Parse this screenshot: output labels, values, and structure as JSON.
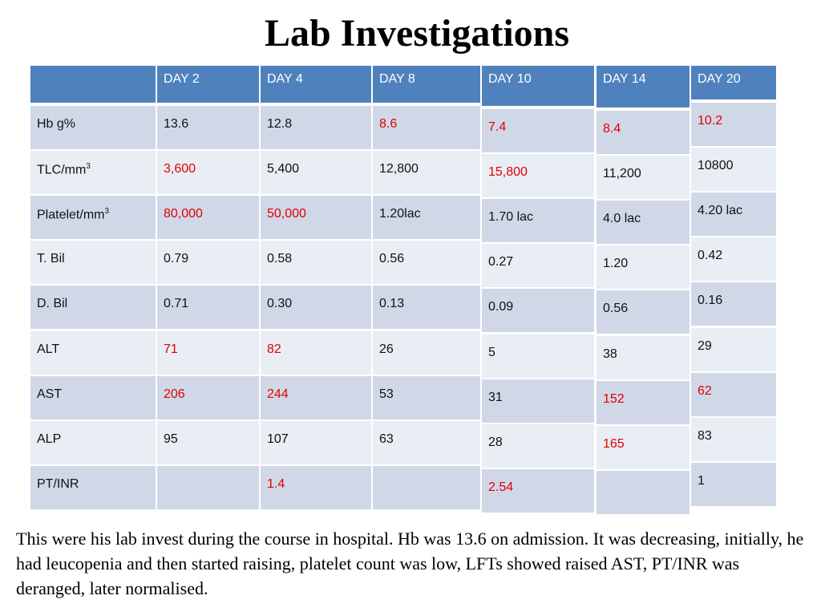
{
  "title": "Lab Investigations",
  "table": {
    "headers": [
      "",
      "DAY 2",
      "DAY 4",
      "DAY 8",
      "DAY 10",
      "DAY 14",
      "DAY 20"
    ],
    "row_labels": [
      {
        "text": "Hb g%",
        "sup": ""
      },
      {
        "text": "TLC/mm",
        "sup": "3"
      },
      {
        "text": "Platelet/mm",
        "sup": "3"
      },
      {
        "text": "T. Bil",
        "sup": ""
      },
      {
        "text": "D. Bil",
        "sup": ""
      },
      {
        "text": "ALT",
        "sup": ""
      },
      {
        "text": "AST",
        "sup": ""
      },
      {
        "text": "ALP",
        "sup": ""
      },
      {
        "text": "PT/INR",
        "sup": ""
      }
    ],
    "values": [
      [
        "13.6",
        "12.8",
        "8.6",
        "7.4",
        "8.4",
        "10.2"
      ],
      [
        "3,600",
        "5,400",
        "12,800",
        "15,800",
        "11,200",
        "10800"
      ],
      [
        "80,000",
        "50,000",
        "1.20lac",
        "1.70 lac",
        "4.0 lac",
        "4.20 lac"
      ],
      [
        "0.79",
        "0.58",
        "0.56",
        "0.27",
        "1.20",
        "0.42"
      ],
      [
        "0.71",
        "0.30",
        "0.13",
        "0.09",
        "0.56",
        "0.16"
      ],
      [
        "71",
        "82",
        "26",
        "5",
        "38",
        "29"
      ],
      [
        "206",
        "244",
        "53",
        "31",
        "152",
        "62"
      ],
      [
        "95",
        "107",
        "63",
        "28",
        "165",
        "83"
      ],
      [
        "",
        "1.4",
        "",
        "2.54",
        "",
        "1"
      ]
    ],
    "highlight": [
      [
        false,
        false,
        true,
        true,
        true,
        true
      ],
      [
        true,
        false,
        false,
        true,
        false,
        false
      ],
      [
        true,
        true,
        false,
        false,
        false,
        false
      ],
      [
        false,
        false,
        false,
        false,
        false,
        false
      ],
      [
        false,
        false,
        false,
        false,
        false,
        false
      ],
      [
        true,
        true,
        false,
        false,
        false,
        false
      ],
      [
        true,
        true,
        false,
        false,
        true,
        true
      ],
      [
        false,
        false,
        false,
        false,
        true,
        false
      ],
      [
        false,
        true,
        false,
        true,
        false,
        false
      ]
    ],
    "colors": {
      "header_bg": "#4f81bd",
      "row_odd": "#d0d8e8",
      "row_even": "#e9edf4",
      "abnormal": "#e00000"
    }
  },
  "summary": "This were his lab invest during the course in hospital. Hb was 13.6 on admission. It was decreasing, initially, he had leucopenia and then started  raising, platelet count was low, LFTs showed raised AST, PT/INR was deranged, later normalised."
}
